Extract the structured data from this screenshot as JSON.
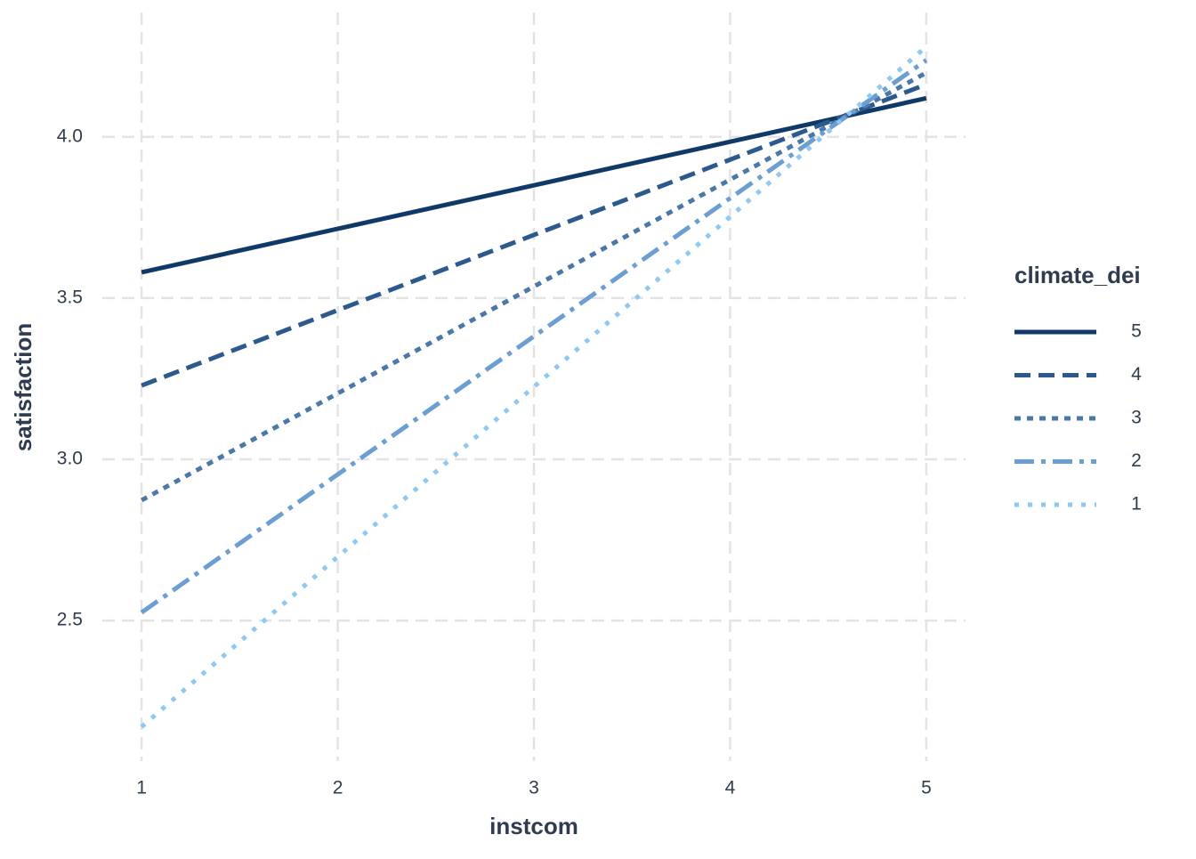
{
  "chart_data": {
    "type": "line",
    "x_label": "instcom",
    "y_label": "satisfaction",
    "legend_title": "climate_dei",
    "legend_position": "right",
    "x": [
      1,
      5
    ],
    "series": [
      {
        "name": "5",
        "color": "#0f3a68",
        "linetype": "solid",
        "values": [
          3.58,
          4.12
        ]
      },
      {
        "name": "4",
        "color": "#2d5a8e",
        "linetype": "dashed",
        "values": [
          3.229,
          4.163
        ]
      },
      {
        "name": "3",
        "color": "#4a78aa",
        "linetype": "dotted",
        "values": [
          2.873,
          4.199
        ]
      },
      {
        "name": "2",
        "color": "#6b9ed3",
        "linetype": "dotdash",
        "values": [
          2.525,
          4.238
        ]
      },
      {
        "name": "1",
        "color": "#8ec8f5",
        "linetype": "sparse-dotted",
        "values": [
          2.17,
          4.28
        ]
      }
    ],
    "xlim": [
      0.8,
      5.2
    ],
    "ylim": [
      2.064,
      4.386
    ],
    "xticks": [
      1,
      2,
      3,
      4,
      5
    ],
    "yticks": [
      2.5,
      {
        "value": 3,
        "label": "3.0"
      },
      3.5,
      {
        "value": 4,
        "label": "4.0"
      }
    ],
    "grid": true
  }
}
